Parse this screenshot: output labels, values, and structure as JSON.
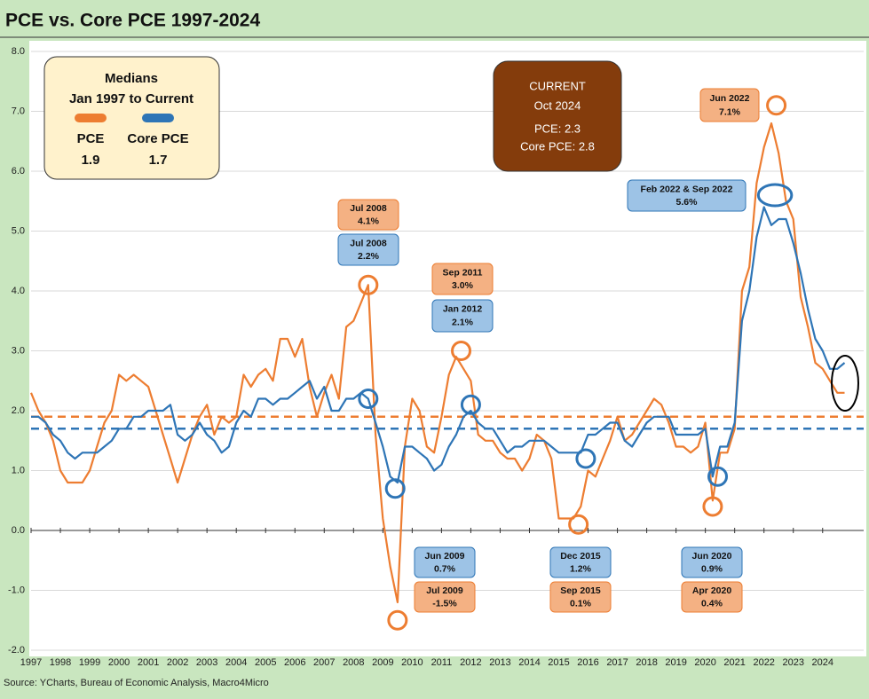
{
  "chart_data": {
    "type": "line",
    "title": "PCE vs. Core PCE 1997-2024",
    "source": "Source: YCharts, Bureau of Economic Analysis, Macro4Micro",
    "x": [
      1997,
      1997.25,
      1997.5,
      1997.75,
      1998,
      1998.25,
      1998.5,
      1998.75,
      1999,
      1999.25,
      1999.5,
      1999.75,
      2000,
      2000.25,
      2000.5,
      2000.75,
      2001,
      2001.25,
      2001.5,
      2001.75,
      2002,
      2002.25,
      2002.5,
      2002.75,
      2003,
      2003.25,
      2003.5,
      2003.75,
      2004,
      2004.25,
      2004.5,
      2004.75,
      2005,
      2005.25,
      2005.5,
      2005.75,
      2006,
      2006.25,
      2006.5,
      2006.75,
      2007,
      2007.25,
      2007.5,
      2007.75,
      2008,
      2008.25,
      2008.5,
      2008.75,
      2009,
      2009.25,
      2009.5,
      2009.75,
      2010,
      2010.25,
      2010.5,
      2010.75,
      2011,
      2011.25,
      2011.5,
      2011.75,
      2012,
      2012.25,
      2012.5,
      2012.75,
      2013,
      2013.25,
      2013.5,
      2013.75,
      2014,
      2014.25,
      2014.5,
      2014.75,
      2015,
      2015.25,
      2015.5,
      2015.75,
      2016,
      2016.25,
      2016.5,
      2016.75,
      2017,
      2017.25,
      2017.5,
      2017.75,
      2018,
      2018.25,
      2018.5,
      2018.75,
      2019,
      2019.25,
      2019.5,
      2019.75,
      2020,
      2020.25,
      2020.5,
      2020.75,
      2021,
      2021.25,
      2021.5,
      2021.75,
      2022,
      2022.25,
      2022.5,
      2022.75,
      2023,
      2023.25,
      2023.5,
      2023.75,
      2024,
      2024.25,
      2024.5,
      2024.75
    ],
    "xlim": [
      1997,
      2025.4
    ],
    "xticks": [
      1997,
      1998,
      1999,
      2000,
      2001,
      2002,
      2003,
      2004,
      2005,
      2006,
      2007,
      2008,
      2009,
      2010,
      2011,
      2012,
      2013,
      2014,
      2015,
      2016,
      2017,
      2018,
      2019,
      2020,
      2021,
      2022,
      2023,
      2024
    ],
    "ylim": [
      -2,
      8
    ],
    "yticks": [
      {
        "value": -2,
        "label": "-2.0"
      },
      {
        "value": -1,
        "label": "-1.0"
      },
      {
        "value": 0,
        "label": "0.0"
      },
      {
        "value": 1,
        "label": "1.0"
      },
      {
        "value": 2,
        "label": "2.0"
      },
      {
        "value": 3,
        "label": "3.0"
      },
      {
        "value": 4,
        "label": "4.0"
      },
      {
        "value": 5,
        "label": "5.0"
      },
      {
        "value": 6,
        "label": "6.0"
      },
      {
        "value": 7,
        "label": "7.0"
      },
      {
        "value": 8,
        "label": "8.0"
      }
    ],
    "grid": true,
    "legend": {
      "title": "Medians",
      "subtitle": "Jan 1997 to Current"
    },
    "series": [
      {
        "name": "PCE",
        "color": "#ed7d31",
        "median": 1.9,
        "values": [
          2.3,
          2.0,
          1.8,
          1.5,
          1.0,
          0.8,
          0.8,
          0.8,
          1.0,
          1.4,
          1.8,
          2.0,
          2.6,
          2.5,
          2.6,
          2.5,
          2.4,
          2.0,
          1.6,
          1.2,
          0.8,
          1.2,
          1.6,
          1.9,
          2.1,
          1.6,
          1.9,
          1.8,
          1.9,
          2.6,
          2.4,
          2.6,
          2.7,
          2.5,
          3.2,
          3.2,
          2.9,
          3.2,
          2.4,
          1.9,
          2.3,
          2.6,
          2.2,
          3.4,
          3.5,
          3.8,
          4.1,
          1.6,
          0.2,
          -0.6,
          -1.2,
          1.4,
          2.2,
          2.0,
          1.4,
          1.3,
          1.9,
          2.6,
          2.9,
          2.7,
          2.5,
          1.6,
          1.5,
          1.5,
          1.3,
          1.2,
          1.2,
          1.0,
          1.2,
          1.6,
          1.5,
          1.2,
          0.2,
          0.2,
          0.2,
          0.4,
          1.0,
          0.9,
          1.2,
          1.5,
          1.9,
          1.5,
          1.6,
          1.8,
          2.0,
          2.2,
          2.1,
          1.8,
          1.4,
          1.4,
          1.3,
          1.4,
          1.8,
          0.5,
          1.3,
          1.3,
          1.7,
          4.0,
          4.4,
          5.8,
          6.4,
          6.8,
          6.3,
          5.5,
          5.2,
          3.9,
          3.4,
          2.8,
          2.7,
          2.5,
          2.3,
          2.3
        ]
      },
      {
        "name": "Core PCE",
        "color": "#2e75b6",
        "median": 1.7,
        "values": [
          1.9,
          1.9,
          1.8,
          1.6,
          1.5,
          1.3,
          1.2,
          1.3,
          1.3,
          1.3,
          1.4,
          1.5,
          1.7,
          1.7,
          1.9,
          1.9,
          2.0,
          2.0,
          2.0,
          2.1,
          1.6,
          1.5,
          1.6,
          1.8,
          1.6,
          1.5,
          1.3,
          1.4,
          1.8,
          2.0,
          1.9,
          2.2,
          2.2,
          2.1,
          2.2,
          2.2,
          2.3,
          2.4,
          2.5,
          2.2,
          2.4,
          2.0,
          2.0,
          2.2,
          2.2,
          2.3,
          2.2,
          1.8,
          1.4,
          0.9,
          0.8,
          1.4,
          1.4,
          1.3,
          1.2,
          1.0,
          1.1,
          1.4,
          1.6,
          1.9,
          2.0,
          1.8,
          1.7,
          1.7,
          1.5,
          1.3,
          1.4,
          1.4,
          1.5,
          1.5,
          1.5,
          1.4,
          1.3,
          1.3,
          1.3,
          1.3,
          1.6,
          1.6,
          1.7,
          1.8,
          1.8,
          1.5,
          1.4,
          1.6,
          1.8,
          1.9,
          1.9,
          1.9,
          1.6,
          1.6,
          1.6,
          1.6,
          1.7,
          0.9,
          1.4,
          1.4,
          1.8,
          3.5,
          4.0,
          4.9,
          5.4,
          5.1,
          5.2,
          5.2,
          4.8,
          4.3,
          3.7,
          3.2,
          3.0,
          2.7,
          2.7,
          2.8
        ]
      }
    ],
    "current_box": [
      "CURRENT",
      "Oct 2024",
      "PCE: 2.3",
      "Core PCE: 2.8"
    ],
    "annotations": [
      {
        "text": "Jul 2008",
        "value_label": "4.1%",
        "series": 0,
        "x": 2008.5,
        "y": 4.1
      },
      {
        "text": "Jul 2008",
        "value_label": "2.2%",
        "series": 1,
        "x": 2008.5,
        "y": 2.2
      },
      {
        "text": "Sep 2011",
        "value_label": "3.0%",
        "series": 0,
        "x": 2011.67,
        "y": 3.0
      },
      {
        "text": "Jan 2012",
        "value_label": "2.1%",
        "series": 1,
        "x": 2012.0,
        "y": 2.1
      },
      {
        "text": "Jun 2009",
        "value_label": "0.7%",
        "series": 1,
        "x": 2009.42,
        "y": 0.7
      },
      {
        "text": "Jul 2009",
        "value_label": "-1.5%",
        "series": 0,
        "x": 2009.5,
        "y": -1.5
      },
      {
        "text": "Dec 2015",
        "value_label": "1.2%",
        "series": 1,
        "x": 2015.92,
        "y": 1.2
      },
      {
        "text": "Sep 2015",
        "value_label": "0.1%",
        "series": 0,
        "x": 2015.67,
        "y": 0.1
      },
      {
        "text": "Jun 2020",
        "value_label": "0.9%",
        "series": 1,
        "x": 2020.42,
        "y": 0.9
      },
      {
        "text": "Apr 2020",
        "value_label": "0.4%",
        "series": 0,
        "x": 2020.25,
        "y": 0.4
      },
      {
        "text": "Jun 2022",
        "value_label": "7.1%",
        "series": 0,
        "x": 2022.42,
        "y": 7.1
      },
      {
        "text": "Feb 2022 & Sep 2022",
        "value_label": "5.6%",
        "series": 1,
        "x": [
          2022.08,
          2022.67
        ],
        "y": 5.6
      }
    ]
  }
}
